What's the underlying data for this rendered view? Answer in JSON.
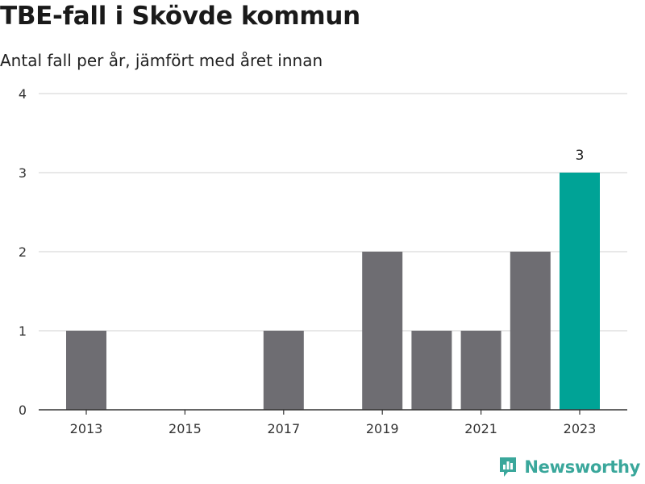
{
  "chart_data": {
    "type": "bar",
    "title": "TBE-fall i Skövde kommun",
    "subtitle": "Antal fall per år, jämfört med året innan",
    "categories": [
      "2013",
      "2014",
      "2015",
      "2016",
      "2017",
      "2018",
      "2019",
      "2020",
      "2021",
      "2022",
      "2023"
    ],
    "values": [
      1,
      0,
      0,
      0,
      1,
      0,
      2,
      1,
      1,
      2,
      3
    ],
    "x_tick_labels": [
      "2013",
      "2015",
      "2017",
      "2019",
      "2021",
      "2023"
    ],
    "y_ticks": [
      "0",
      "1",
      "2",
      "3",
      "4"
    ],
    "ylim": [
      0,
      4
    ],
    "grid": true,
    "highlight": {
      "category": "2023",
      "label": "3"
    },
    "colors": {
      "bar": "#6e6d72",
      "highlight": "#00a396",
      "grid": "#d9d9d9",
      "axis": "#333333"
    }
  },
  "branding": {
    "name": "Newsworthy",
    "icon": "newsworthy-logo-icon",
    "color": "#3aa79b"
  }
}
